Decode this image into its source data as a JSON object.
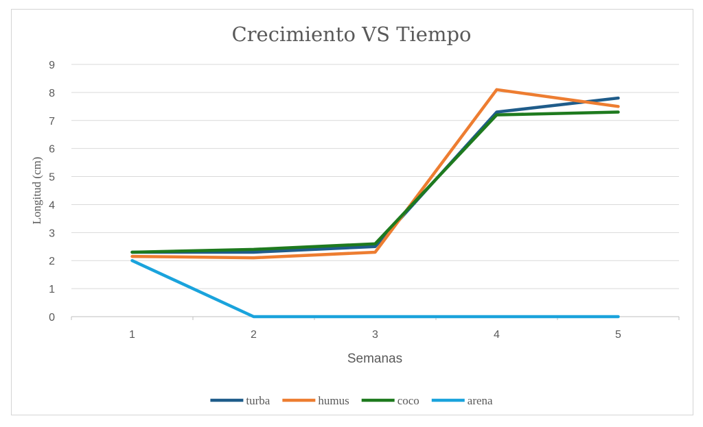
{
  "chart_data": {
    "type": "line",
    "title": "Crecimiento VS Tiempo",
    "xlabel": "Semanas",
    "ylabel": "Longitud (cm)",
    "categories": [
      "1",
      "2",
      "3",
      "4",
      "5"
    ],
    "ylim": [
      0,
      9
    ],
    "yticks": [
      "0",
      "1",
      "2",
      "3",
      "4",
      "5",
      "6",
      "7",
      "8",
      "9"
    ],
    "grid": true,
    "legend_position": "bottom",
    "series": [
      {
        "name": "turba",
        "color": "#1f5c8a",
        "values": [
          2.3,
          2.3,
          2.5,
          7.3,
          7.8
        ]
      },
      {
        "name": "humus",
        "color": "#ed7d31",
        "values": [
          2.15,
          2.1,
          2.3,
          8.1,
          7.5
        ]
      },
      {
        "name": "coco",
        "color": "#1e7a1e",
        "values": [
          2.3,
          2.4,
          2.6,
          7.2,
          7.3
        ]
      },
      {
        "name": "arena",
        "color": "#1aa3dc",
        "values": [
          2.0,
          0,
          0,
          0,
          0
        ]
      }
    ]
  }
}
